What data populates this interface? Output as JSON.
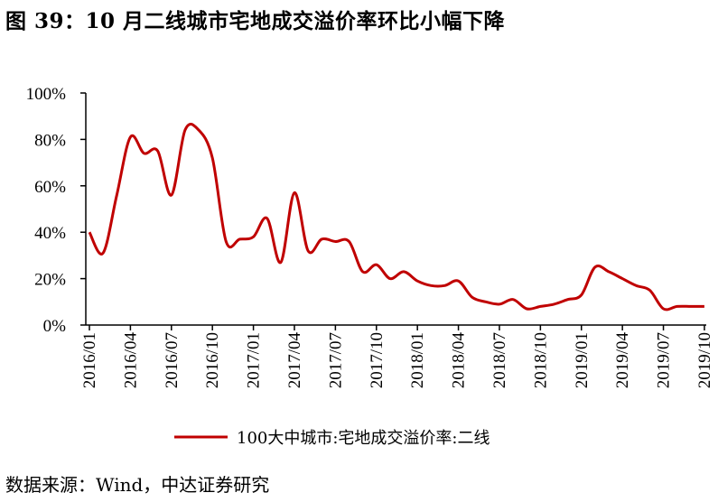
{
  "title": "图 39：10 月二线城市宅地成交溢价率环比小幅下降",
  "source": "数据来源：Wind，中达证券研究",
  "colors": {
    "series": "#C00000",
    "axis": "#000000"
  },
  "chart_data": {
    "type": "line",
    "title": "",
    "xlabel": "",
    "ylabel": "",
    "ylim": [
      0,
      100
    ],
    "y_ticks": [
      "0%",
      "20%",
      "40%",
      "60%",
      "80%",
      "100%"
    ],
    "x_ticks": [
      "2016/01",
      "2016/04",
      "2016/07",
      "2016/10",
      "2017/01",
      "2017/04",
      "2017/07",
      "2017/10",
      "2018/01",
      "2018/04",
      "2018/07",
      "2018/10",
      "2019/01",
      "2019/04",
      "2019/07",
      "2019/10"
    ],
    "legend_position": "bottom",
    "grid": false,
    "series": [
      {
        "name": "100大中城市:宅地成交溢价率:二线",
        "x": [
          "2016/01",
          "2016/02",
          "2016/03",
          "2016/04",
          "2016/05",
          "2016/06",
          "2016/07",
          "2016/08",
          "2016/09",
          "2016/10",
          "2016/11",
          "2016/12",
          "2017/01",
          "2017/02",
          "2017/03",
          "2017/04",
          "2017/05",
          "2017/06",
          "2017/07",
          "2017/08",
          "2017/09",
          "2017/10",
          "2017/11",
          "2017/12",
          "2018/01",
          "2018/02",
          "2018/03",
          "2018/04",
          "2018/05",
          "2018/06",
          "2018/07",
          "2018/08",
          "2018/09",
          "2018/10",
          "2018/11",
          "2018/12",
          "2019/01",
          "2019/02",
          "2019/03",
          "2019/04",
          "2019/05",
          "2019/06",
          "2019/07",
          "2019/08",
          "2019/09",
          "2019/10"
        ],
        "values": [
          40,
          31,
          56,
          81,
          74,
          75,
          56,
          84,
          84,
          72,
          36,
          37,
          38,
          46,
          27,
          57,
          32,
          37,
          36,
          36,
          23,
          26,
          20,
          23,
          19,
          17,
          17,
          19,
          12,
          10,
          9,
          11,
          7,
          8,
          9,
          11,
          13,
          25,
          23,
          20,
          17,
          15,
          7,
          8,
          8,
          8
        ]
      }
    ]
  }
}
